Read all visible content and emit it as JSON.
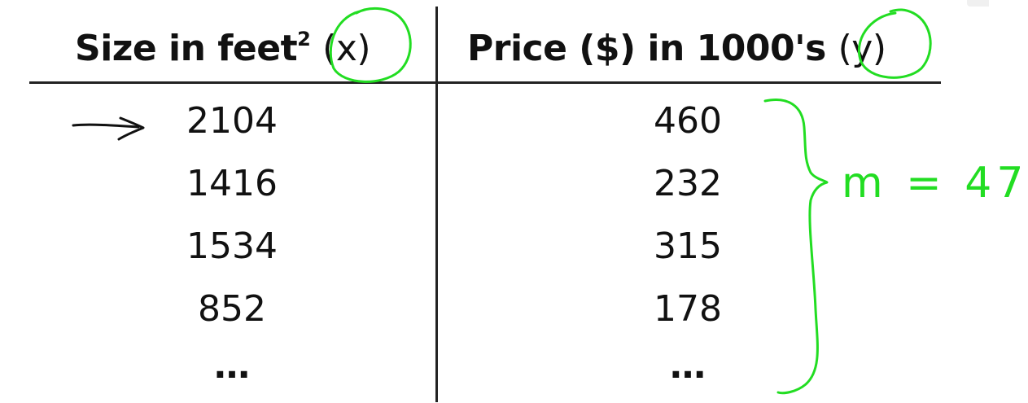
{
  "table": {
    "headers": {
      "x": {
        "label": "Size in feet",
        "superscript": "2",
        "variable": "(x)"
      },
      "y": {
        "label": "Price ($) in 1000's",
        "variable": "(y)"
      }
    },
    "rows": [
      {
        "x": "2104",
        "y": "460"
      },
      {
        "x": "1416",
        "y": "232"
      },
      {
        "x": "1534",
        "y": "315"
      },
      {
        "x": "852",
        "y": "178"
      },
      {
        "x": "…",
        "y": "…"
      }
    ]
  },
  "annotations": {
    "count_note": "m = 47",
    "ink_color": "#22dd22",
    "arrow_icon": "right-arrow-icon",
    "brace_icon": "right-curly-brace-icon"
  }
}
